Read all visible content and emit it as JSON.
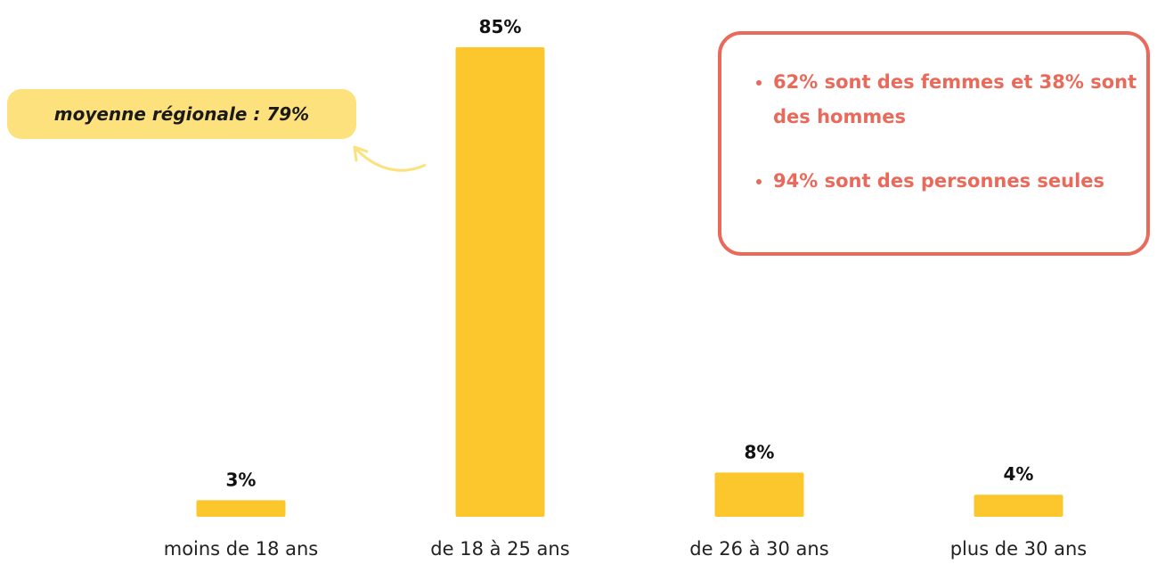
{
  "chart_data": {
    "type": "bar",
    "categories": [
      "moins de 18 ans",
      "de 18 à 25 ans",
      "de 26 à 30 ans",
      "plus de 30 ans"
    ],
    "values": [
      3,
      85,
      8,
      4
    ],
    "value_labels": [
      "3%",
      "85%",
      "8%",
      "4%"
    ],
    "color": "#fcc72c",
    "annotation": "moyenne régionale : 79%",
    "bullets": [
      "62% sont des femmes et 38% sont des hommes",
      "94% sont des personnes seules"
    ]
  }
}
